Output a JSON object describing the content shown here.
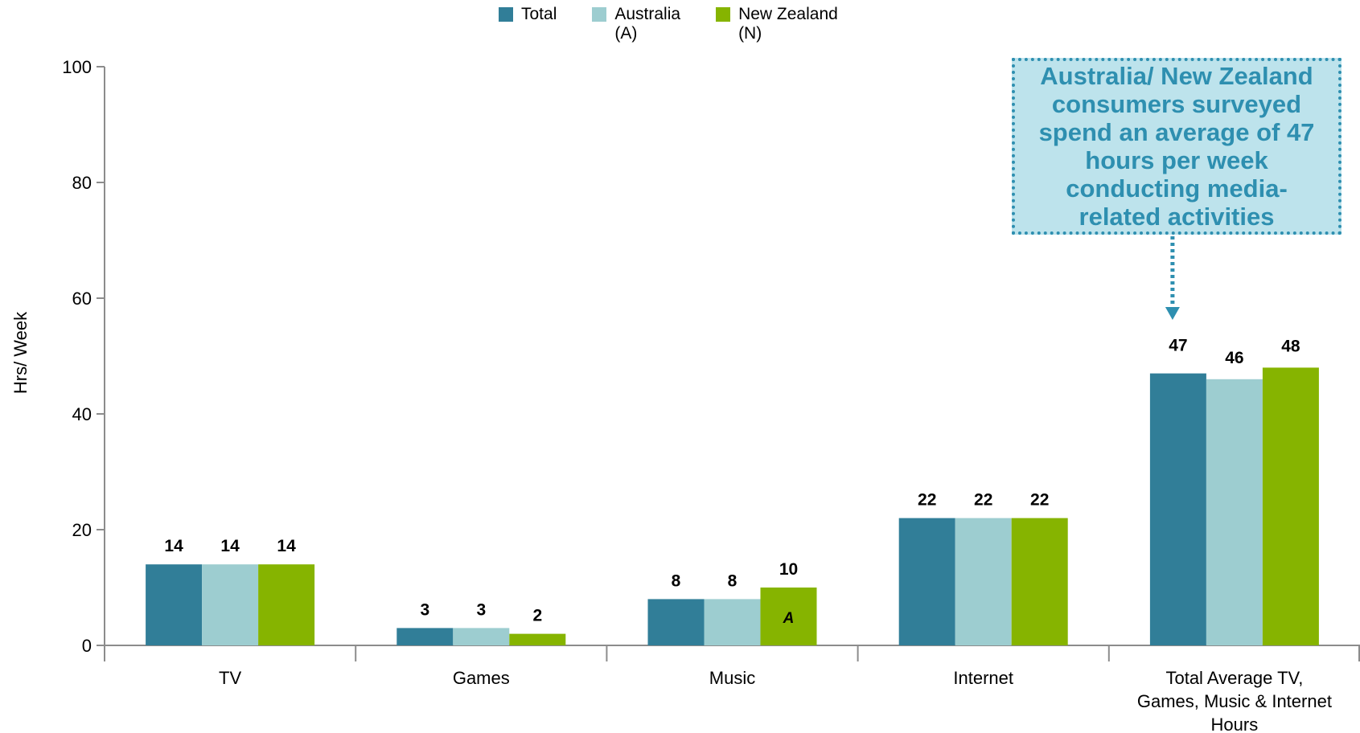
{
  "chart_data": {
    "type": "bar",
    "ylabel": "Hrs/ Week",
    "ylim": [
      0,
      100
    ],
    "yticks": [
      0,
      20,
      40,
      60,
      80,
      100
    ],
    "categories": [
      [
        "TV"
      ],
      [
        "Games"
      ],
      [
        "Music"
      ],
      [
        "Internet"
      ],
      [
        "Total Average TV,",
        "Games, Music & Internet",
        "Hours"
      ]
    ],
    "series": [
      {
        "name": "Total",
        "color": "#317e98",
        "values": [
          14,
          3,
          8,
          22,
          47
        ]
      },
      {
        "name": "Australia (A)",
        "color": "#9dcdd0",
        "values": [
          14,
          3,
          8,
          22,
          46
        ]
      },
      {
        "name": "New Zealand (N)",
        "color": "#86b400",
        "values": [
          14,
          2,
          10,
          22,
          48
        ]
      }
    ],
    "annotations": [
      {
        "category_index": 2,
        "series_index": 2,
        "text": "A"
      }
    ],
    "legend": {
      "placement": "top-center",
      "items": [
        {
          "color": "#317e98",
          "lines": [
            "Total"
          ]
        },
        {
          "color": "#9dcdd0",
          "lines": [
            "Australia",
            "(A)"
          ]
        },
        {
          "color": "#86b400",
          "lines": [
            "New Zealand",
            "(N)"
          ]
        }
      ]
    },
    "callout": {
      "lines": [
        "Australia/ New Zealand",
        "consumers surveyed",
        "spend an average of 47",
        "hours per week",
        "conducting media-",
        "related activities"
      ],
      "points_to_category_index": 4
    },
    "grid": false
  }
}
